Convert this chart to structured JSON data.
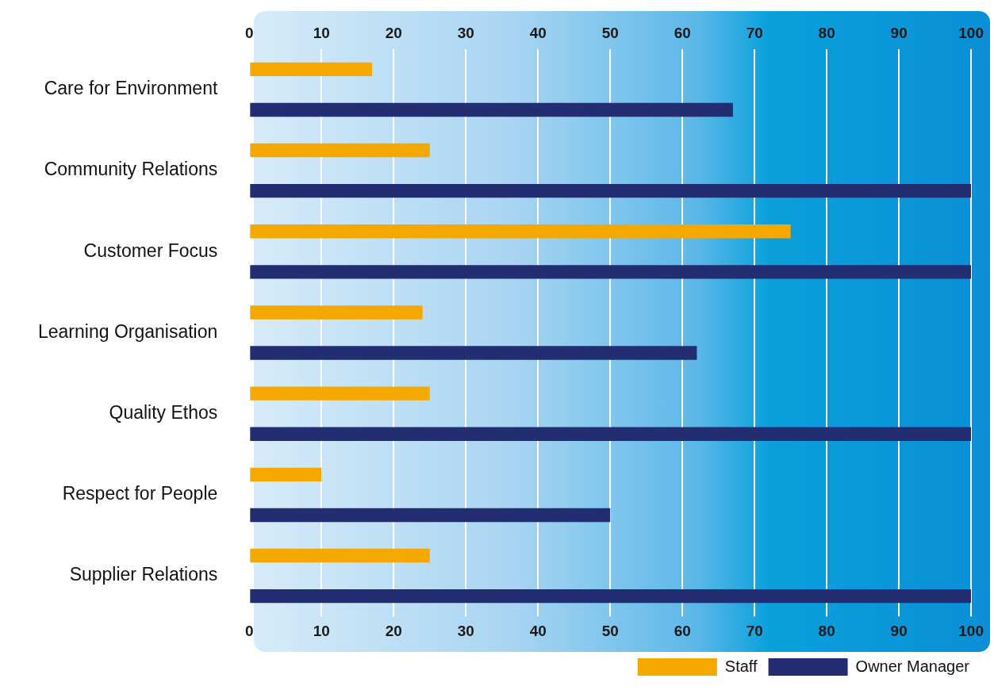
{
  "chart_data": {
    "type": "bar",
    "orientation": "horizontal",
    "categories": [
      "Care for Environment",
      "Community Relations",
      "Customer Focus",
      "Learning Organisation",
      "Quality Ethos",
      "Respect for People",
      "Supplier Relations"
    ],
    "series": [
      {
        "name": "Staff",
        "color": "#f5a800",
        "values": [
          17,
          25,
          75,
          24,
          25,
          10,
          25
        ]
      },
      {
        "name": "Owner Manager",
        "color": "#232d72",
        "values": [
          67,
          100,
          100,
          62,
          100,
          50,
          100
        ]
      }
    ],
    "xlim": [
      0,
      100
    ],
    "xticks": [
      0,
      10,
      20,
      30,
      40,
      50,
      60,
      70,
      80,
      90,
      100
    ],
    "x2lim": [
      0,
      100
    ],
    "x2ticks": [
      0,
      10,
      20,
      30,
      40,
      50,
      60,
      70,
      80,
      90,
      100
    ],
    "grid": "x",
    "legend": "bottom right"
  }
}
